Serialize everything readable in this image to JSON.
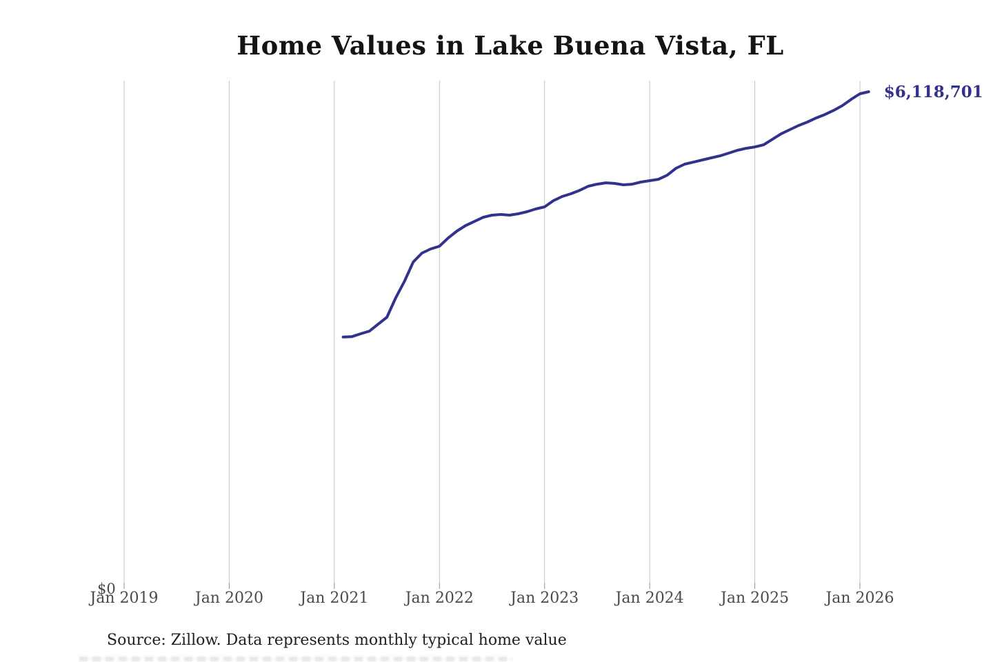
{
  "header": {
    "title": "Home Values in Lake Buena Vista, FL"
  },
  "footer": {
    "source_note": "Source: Zillow. Data represents monthly typical home value"
  },
  "colors": {
    "background": "#ffffff",
    "line": "#32328c",
    "annotation_text": "#32328c",
    "gridline": "#c4c4c4",
    "axis_tick": "#8f8f8f",
    "axis_text": "#4a4a4a",
    "title_text": "#141414"
  },
  "chart_data": {
    "type": "line",
    "title": "Home Values in Lake Buena Vista, FL",
    "xlabel": "",
    "ylabel": "",
    "grid": "vertical-only",
    "legend": "none",
    "x_tick_labels": [
      "Jan 2019",
      "Jan 2020",
      "Jan 2021",
      "Jan 2022",
      "Jan 2023",
      "Jan 2024",
      "Jan 2025",
      "Jan 2026"
    ],
    "y_axis": {
      "min": 0,
      "min_label": "$0",
      "max": 6118701
    },
    "annotation": {
      "text": "$6,118,701",
      "attach": "last-point"
    },
    "series": [
      {
        "name": "Monthly typical home value",
        "points": [
          [
            "2021-02",
            3108000
          ],
          [
            "2021-03",
            3113000
          ],
          [
            "2021-04",
            3148000
          ],
          [
            "2021-05",
            3180000
          ],
          [
            "2021-06",
            3266000
          ],
          [
            "2021-07",
            3351000
          ],
          [
            "2021-08",
            3588000
          ],
          [
            "2021-09",
            3791000
          ],
          [
            "2021-10",
            4028000
          ],
          [
            "2021-11",
            4138000
          ],
          [
            "2021-12",
            4189000
          ],
          [
            "2022-01",
            4223000
          ],
          [
            "2022-02",
            4324000
          ],
          [
            "2022-03",
            4409000
          ],
          [
            "2022-04",
            4477000
          ],
          [
            "2022-05",
            4527000
          ],
          [
            "2022-06",
            4578000
          ],
          [
            "2022-07",
            4604000
          ],
          [
            "2022-08",
            4612000
          ],
          [
            "2022-09",
            4604000
          ],
          [
            "2022-10",
            4621000
          ],
          [
            "2022-11",
            4646000
          ],
          [
            "2022-12",
            4680000
          ],
          [
            "2023-01",
            4705000
          ],
          [
            "2023-02",
            4781000
          ],
          [
            "2023-03",
            4832000
          ],
          [
            "2023-04",
            4866000
          ],
          [
            "2023-05",
            4908000
          ],
          [
            "2023-06",
            4959000
          ],
          [
            "2023-07",
            4984000
          ],
          [
            "2023-08",
            5001000
          ],
          [
            "2023-09",
            4993000
          ],
          [
            "2023-10",
            4976000
          ],
          [
            "2023-11",
            4984000
          ],
          [
            "2023-12",
            5010000
          ],
          [
            "2024-01",
            5027000
          ],
          [
            "2024-02",
            5044000
          ],
          [
            "2024-03",
            5094000
          ],
          [
            "2024-04",
            5179000
          ],
          [
            "2024-05",
            5230000
          ],
          [
            "2024-06",
            5255000
          ],
          [
            "2024-07",
            5281000
          ],
          [
            "2024-08",
            5306000
          ],
          [
            "2024-09",
            5331000
          ],
          [
            "2024-10",
            5365000
          ],
          [
            "2024-11",
            5399000
          ],
          [
            "2024-12",
            5424000
          ],
          [
            "2025-01",
            5441000
          ],
          [
            "2025-02",
            5467000
          ],
          [
            "2025-03",
            5534000
          ],
          [
            "2025-04",
            5602000
          ],
          [
            "2025-05",
            5653000
          ],
          [
            "2025-06",
            5704000
          ],
          [
            "2025-07",
            5746000
          ],
          [
            "2025-08",
            5796000
          ],
          [
            "2025-09",
            5839000
          ],
          [
            "2025-10",
            5889000
          ],
          [
            "2025-11",
            5949000
          ],
          [
            "2025-12",
            6025000
          ],
          [
            "2026-01",
            6093000
          ],
          [
            "2026-02",
            6118701
          ]
        ]
      }
    ]
  }
}
